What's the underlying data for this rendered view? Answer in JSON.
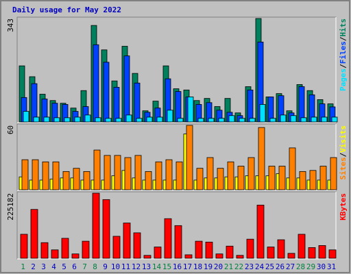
{
  "chart_data": [
    {
      "type": "bar",
      "title": "Daily usage for May 2022",
      "title_color": "#0000c0",
      "ylim": [
        0,
        343
      ],
      "yticks": [
        343
      ],
      "legend_separator": "/",
      "series": [
        {
          "name": "Hits",
          "color": "#00805c",
          "values": [
            186,
            150,
            92,
            71,
            62,
            46,
            104,
            320,
            239,
            136,
            251,
            161,
            37,
            69,
            186,
            110,
            106,
            71,
            78,
            51,
            78,
            30,
            117,
            343,
            83,
            94,
            37,
            124,
            104,
            74,
            60
          ]
        },
        {
          "name": "Files",
          "color": "#0040ff",
          "values": [
            81,
            127,
            76,
            62,
            58,
            35,
            51,
            256,
            198,
            115,
            219,
            129,
            32,
            46,
            143,
            101,
            83,
            58,
            64,
            39,
            32,
            21,
            106,
            265,
            83,
            87,
            30,
            117,
            90,
            60,
            50
          ]
        },
        {
          "name": "Pages",
          "color": "#00e0ff",
          "values": [
            35,
            16,
            16,
            14,
            14,
            16,
            23,
            14,
            12,
            12,
            23,
            12,
            16,
            16,
            39,
            12,
            83,
            12,
            12,
            12,
            21,
            12,
            12,
            58,
            12,
            23,
            21,
            14,
            16,
            16,
            16
          ]
        }
      ]
    },
    {
      "type": "bar",
      "ylim": [
        0,
        60
      ],
      "yticks": [
        60
      ],
      "legend_separator": "/",
      "series": [
        {
          "name": "Visits",
          "color": "#ffff00",
          "values": [
            12,
            9,
            9,
            10,
            11,
            11,
            9,
            9,
            9,
            13,
            18,
            11,
            9,
            9,
            9,
            9,
            52,
            9,
            11,
            11,
            12,
            12,
            13,
            13,
            13,
            15,
            11,
            11,
            9,
            9,
            9
          ]
        },
        {
          "name": "Sites",
          "color": "#ff8000",
          "values": [
            28,
            28,
            26,
            26,
            17,
            20,
            17,
            37,
            32,
            32,
            30,
            32,
            17,
            26,
            28,
            26,
            60,
            20,
            30,
            20,
            26,
            22,
            30,
            58,
            22,
            22,
            39,
            17,
            18,
            22,
            30
          ]
        }
      ]
    },
    {
      "type": "bar",
      "ylim": [
        0,
        225182
      ],
      "yticks": [
        225182
      ],
      "categories": [
        "1",
        "2",
        "3",
        "4",
        "5",
        "6",
        "7",
        "8",
        "9",
        "10",
        "11",
        "12",
        "13",
        "14",
        "15",
        "16",
        "17",
        "18",
        "19",
        "20",
        "21",
        "22",
        "23",
        "24",
        "25",
        "26",
        "27",
        "28",
        "29",
        "30",
        "31"
      ],
      "category_colors": [
        "#008040",
        "#0000c0",
        "#0000c0",
        "#0000c0",
        "#0000c0",
        "#0000c0",
        "#008040",
        "#008040",
        "#0000c0",
        "#0000c0",
        "#0000c0",
        "#0000c0",
        "#0000c0",
        "#008040",
        "#008040",
        "#0000c0",
        "#0000c0",
        "#0000c0",
        "#0000c0",
        "#0000c0",
        "#008040",
        "#008040",
        "#0000c0",
        "#0000c0",
        "#0000c0",
        "#0000c0",
        "#0000c0",
        "#008040",
        "#008040",
        "#0000c0",
        "#0000c0"
      ],
      "series": [
        {
          "name": "KBytes",
          "color": "#ff0000",
          "values": [
            83000,
            169000,
            54000,
            29000,
            69000,
            15000,
            59000,
            225182,
            203000,
            76000,
            122000,
            88000,
            10000,
            39000,
            137000,
            113000,
            12000,
            59000,
            56000,
            15000,
            42000,
            10000,
            66000,
            184000,
            39000,
            64000,
            17000,
            83000,
            37000,
            44000,
            29000
          ]
        }
      ]
    }
  ]
}
